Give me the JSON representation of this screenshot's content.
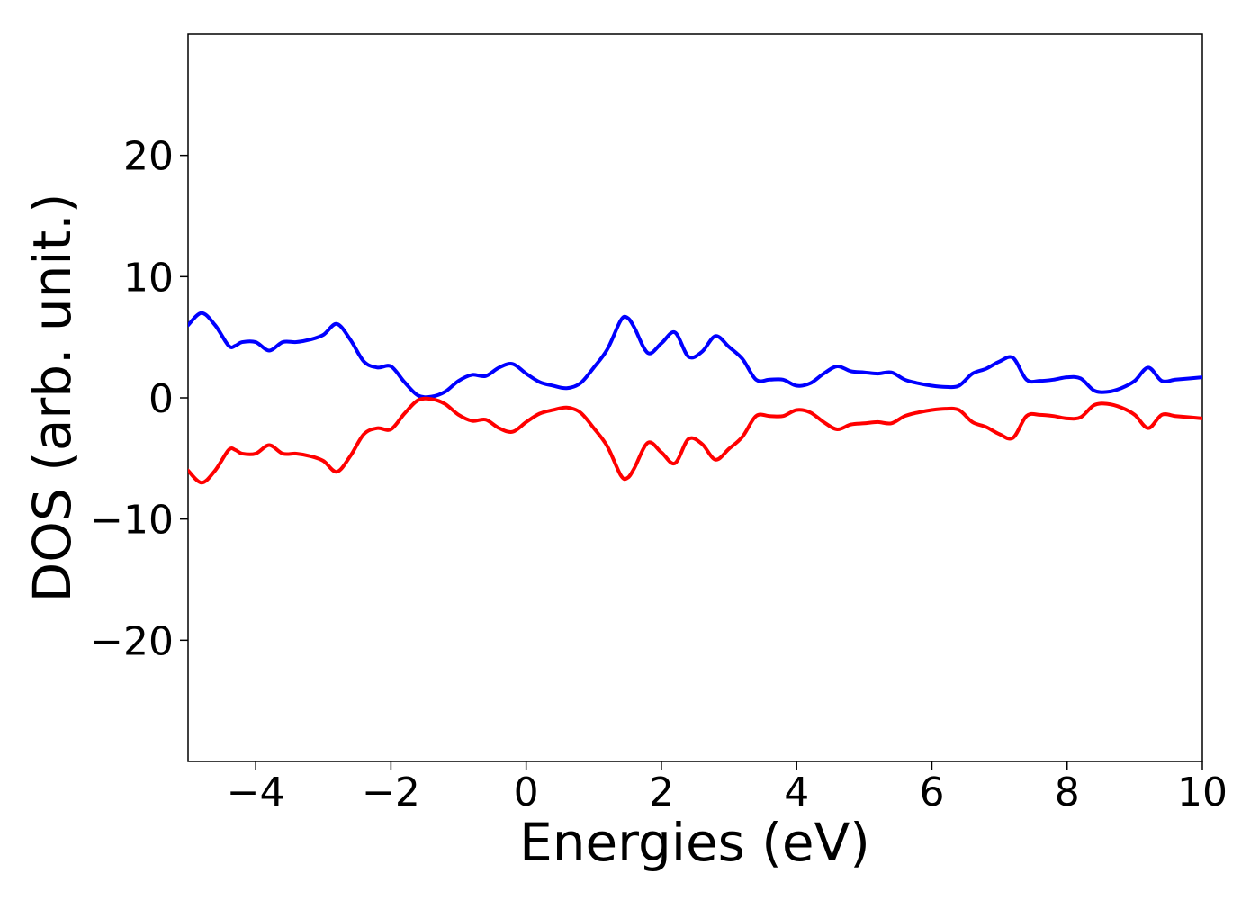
{
  "chart_data": {
    "type": "line",
    "title": "",
    "xlabel": "Energies (eV)",
    "ylabel": "DOS (arb. unit.)",
    "xlim": [
      -5,
      10
    ],
    "ylim": [
      -30,
      30
    ],
    "xticks": [
      -4,
      -2,
      0,
      2,
      4,
      6,
      8,
      10
    ],
    "yticks": [
      -20,
      -10,
      0,
      10,
      20
    ],
    "xtick_labels": [
      "−4",
      "−2",
      "0",
      "2",
      "4",
      "6",
      "8",
      "10"
    ],
    "ytick_labels": [
      "−20",
      "−10",
      "0",
      "10",
      "20"
    ],
    "grid": false,
    "legend": "none",
    "x": [
      -5.0,
      -4.8,
      -4.6,
      -4.4,
      -4.3,
      -4.2,
      -4.0,
      -3.8,
      -3.6,
      -3.4,
      -3.2,
      -3.0,
      -2.8,
      -2.6,
      -2.4,
      -2.2,
      -2.0,
      -1.8,
      -1.6,
      -1.4,
      -1.2,
      -1.0,
      -0.8,
      -0.6,
      -0.4,
      -0.2,
      0.0,
      0.2,
      0.4,
      0.6,
      0.8,
      1.0,
      1.2,
      1.4,
      1.5,
      1.6,
      1.8,
      2.0,
      2.2,
      2.4,
      2.6,
      2.8,
      3.0,
      3.2,
      3.4,
      3.6,
      3.8,
      4.0,
      4.2,
      4.4,
      4.6,
      4.8,
      5.0,
      5.2,
      5.4,
      5.6,
      5.8,
      6.0,
      6.2,
      6.4,
      6.6,
      6.8,
      7.0,
      7.2,
      7.4,
      7.6,
      7.8,
      8.0,
      8.2,
      8.4,
      8.6,
      8.8,
      9.0,
      9.2,
      9.4,
      9.6,
      9.8,
      10.0
    ],
    "series": [
      {
        "color": "#0000ff",
        "values": [
          6.0,
          7.0,
          6.0,
          4.3,
          4.3,
          4.6,
          4.6,
          3.9,
          4.6,
          4.6,
          4.8,
          5.2,
          6.1,
          4.8,
          3.0,
          2.5,
          2.6,
          1.3,
          0.2,
          0.1,
          0.5,
          1.4,
          1.9,
          1.8,
          2.5,
          2.8,
          2.0,
          1.3,
          1.0,
          0.8,
          1.2,
          2.5,
          4.0,
          6.4,
          6.6,
          5.8,
          3.7,
          4.5,
          5.4,
          3.4,
          3.8,
          5.1,
          4.2,
          3.2,
          1.5,
          1.5,
          1.5,
          1.0,
          1.2,
          2.0,
          2.6,
          2.2,
          2.1,
          2.0,
          2.1,
          1.5,
          1.2,
          1.0,
          0.9,
          1.0,
          2.0,
          2.4,
          3.0,
          3.3,
          1.5,
          1.4,
          1.5,
          1.7,
          1.6,
          0.6,
          0.5,
          0.8,
          1.4,
          2.5,
          1.4,
          1.5,
          1.6,
          1.7
        ]
      },
      {
        "color": "#ff0000",
        "values": [
          -6.0,
          -7.0,
          -6.0,
          -4.3,
          -4.3,
          -4.6,
          -4.6,
          -3.9,
          -4.6,
          -4.6,
          -4.8,
          -5.2,
          -6.1,
          -4.8,
          -3.0,
          -2.5,
          -2.6,
          -1.3,
          -0.2,
          -0.1,
          -0.5,
          -1.4,
          -1.9,
          -1.8,
          -2.5,
          -2.8,
          -2.0,
          -1.3,
          -1.0,
          -0.8,
          -1.2,
          -2.5,
          -4.0,
          -6.4,
          -6.6,
          -5.8,
          -3.7,
          -4.5,
          -5.4,
          -3.4,
          -3.8,
          -5.1,
          -4.2,
          -3.2,
          -1.5,
          -1.5,
          -1.5,
          -1.0,
          -1.2,
          -2.0,
          -2.6,
          -2.2,
          -2.1,
          -2.0,
          -2.1,
          -1.5,
          -1.2,
          -1.0,
          -0.9,
          -1.0,
          -2.0,
          -2.4,
          -3.0,
          -3.3,
          -1.5,
          -1.4,
          -1.5,
          -1.7,
          -1.6,
          -0.6,
          -0.5,
          -0.8,
          -1.4,
          -2.5,
          -1.4,
          -1.5,
          -1.6,
          -1.7
        ]
      }
    ]
  }
}
